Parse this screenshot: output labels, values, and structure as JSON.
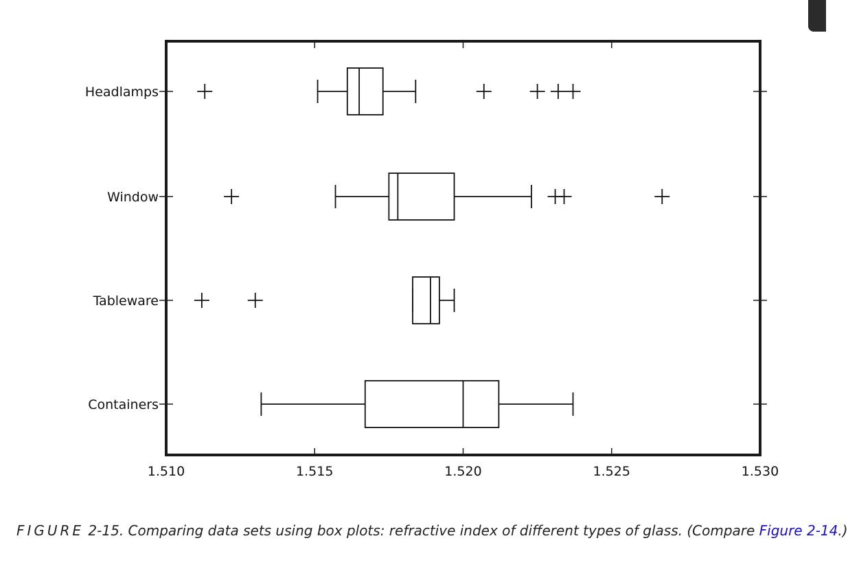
{
  "chart_data": {
    "type": "boxplot",
    "orientation": "horizontal",
    "title": "",
    "xlabel": "",
    "ylabel": "",
    "xlim": [
      1.51,
      1.53
    ],
    "xticks": [
      "1.510",
      "1.515",
      "1.520",
      "1.525",
      "1.530"
    ],
    "grid": false,
    "categories": [
      "Headlamps",
      "Window",
      "Tableware",
      "Containers"
    ],
    "series": [
      {
        "category": "Headlamps",
        "whisker_low": 1.5151,
        "q1": 1.5161,
        "median": 1.5165,
        "q3": 1.5173,
        "whisker_high": 1.5184,
        "outliers": [
          1.5113,
          1.5207,
          1.5225,
          1.5232,
          1.5237
        ]
      },
      {
        "category": "Window",
        "whisker_low": 1.5157,
        "q1": 1.5175,
        "median": 1.5178,
        "q3": 1.5197,
        "whisker_high": 1.5223,
        "outliers": [
          1.5122,
          1.5231,
          1.5234,
          1.5267
        ]
      },
      {
        "category": "Tableware",
        "whisker_low": 1.5183,
        "q1": 1.5183,
        "median": 1.5189,
        "q3": 1.5192,
        "whisker_high": 1.5197,
        "outliers": [
          1.5112,
          1.513
        ]
      },
      {
        "category": "Containers",
        "whisker_low": 1.5132,
        "q1": 1.5167,
        "median": 1.52,
        "q3": 1.5212,
        "whisker_high": 1.5237,
        "outliers": []
      }
    ]
  },
  "caption": {
    "prefix": "FIGURE",
    "text": " 2-15. Comparing data sets using box plots: refractive index of different types of glass. (Compare ",
    "link": "Figure 2-14",
    "suffix": ".)"
  },
  "colors": {
    "axis": "#1a1a1a",
    "box": "#111111",
    "link": "#1a0dcc"
  }
}
